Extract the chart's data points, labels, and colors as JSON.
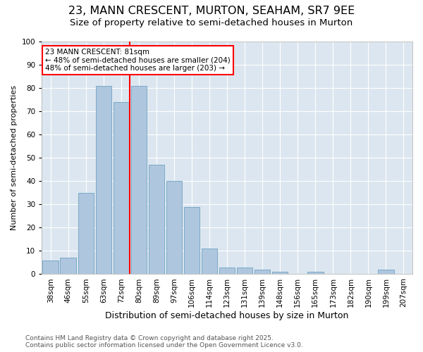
{
  "title1": "23, MANN CRESCENT, MURTON, SEAHAM, SR7 9EE",
  "title2": "Size of property relative to semi-detached houses in Murton",
  "xlabel": "Distribution of semi-detached houses by size in Murton",
  "ylabel": "Number of semi-detached properties",
  "categories": [
    "38sqm",
    "46sqm",
    "55sqm",
    "63sqm",
    "72sqm",
    "80sqm",
    "89sqm",
    "97sqm",
    "106sqm",
    "114sqm",
    "123sqm",
    "131sqm",
    "139sqm",
    "148sqm",
    "156sqm",
    "165sqm",
    "173sqm",
    "182sqm",
    "190sqm",
    "199sqm",
    "207sqm"
  ],
  "values": [
    6,
    7,
    35,
    81,
    74,
    81,
    47,
    40,
    29,
    11,
    3,
    3,
    2,
    1,
    0,
    1,
    0,
    0,
    0,
    2,
    0
  ],
  "bar_color": "#aec6de",
  "bar_edge_color": "#7aaac8",
  "vline_color": "red",
  "vline_x_index": 5,
  "annotation_title": "23 MANN CRESCENT: 81sqm",
  "annotation_line1": "← 48% of semi-detached houses are smaller (204)",
  "annotation_line2": "48% of semi-detached houses are larger (203) →",
  "annotation_box_color": "white",
  "annotation_box_edge": "red",
  "ylim": [
    0,
    100
  ],
  "yticks": [
    0,
    10,
    20,
    30,
    40,
    50,
    60,
    70,
    80,
    90,
    100
  ],
  "bg_color": "#dce6f0",
  "footer1": "Contains HM Land Registry data © Crown copyright and database right 2025.",
  "footer2": "Contains public sector information licensed under the Open Government Licence v3.0.",
  "title1_fontsize": 11.5,
  "title2_fontsize": 9.5,
  "xlabel_fontsize": 9,
  "ylabel_fontsize": 8,
  "tick_fontsize": 7.5,
  "annotation_fontsize": 7.5,
  "footer_fontsize": 6.5
}
